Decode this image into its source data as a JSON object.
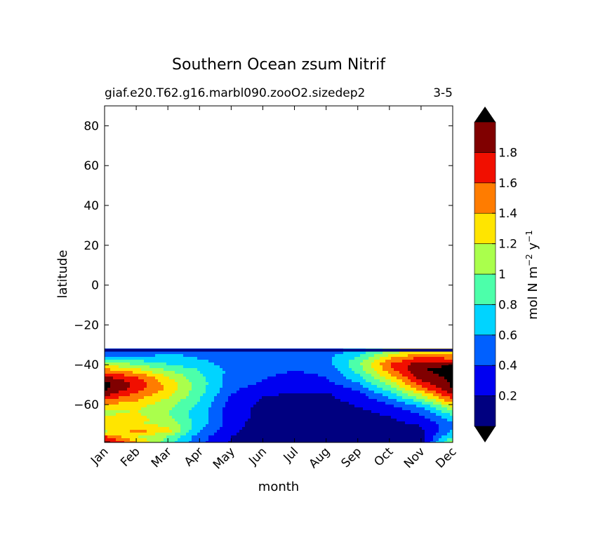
{
  "chart_data": {
    "type": "heatmap",
    "title": "Southern Ocean zsum Nitrif",
    "subtitle_left": "giaf.e20.T62.g16.marbl090.zooO2.sizedep2",
    "subtitle_right": "3-5",
    "xlabel": "month",
    "ylabel": "latitude",
    "x_categories": [
      "Jan",
      "Feb",
      "Mar",
      "Apr",
      "May",
      "Jun",
      "Jul",
      "Aug",
      "Sep",
      "Oct",
      "Nov",
      "Dec"
    ],
    "y_ticks": [
      80,
      60,
      40,
      20,
      0,
      -20,
      -40,
      -60
    ],
    "y_tick_labels": [
      "80",
      "60",
      "40",
      "20",
      "0",
      "−20",
      "−40",
      "−60"
    ],
    "ylim": [
      -79,
      90
    ],
    "colorbar": {
      "label": "mol N m⁻² y⁻¹",
      "label_main": "mol N m",
      "label_exp1": "−2",
      "label_mid": " y",
      "label_exp2": "−1",
      "levels": [
        0,
        0.2,
        0.4,
        0.6,
        0.8,
        1.0,
        1.2,
        1.4,
        1.6,
        1.8,
        2.0
      ],
      "tick_values": [
        0.2,
        0.4,
        0.6,
        0.8,
        1.0,
        1.2,
        1.4,
        1.6,
        1.8
      ],
      "tick_labels": [
        "0.2",
        "0.4",
        "0.6",
        "0.8",
        "1",
        "1.2",
        "1.4",
        "1.6",
        "1.8"
      ],
      "colors": [
        "#000080",
        "#0000f1",
        "#0060ff",
        "#00d4ff",
        "#4cffaa",
        "#aaff4c",
        "#ffe500",
        "#ff7c00",
        "#f10f00",
        "#800000"
      ],
      "over_color": "#000000",
      "under_color": "#000000"
    },
    "field": {
      "lat_top": -32,
      "lat_bottom": -79,
      "top_band_color": "#000080",
      "rows": [
        [
          -34,
          [
            0.4,
            0.4,
            0.6,
            0.5,
            0.45,
            0.4,
            0.4,
            0.5,
            0.7,
            1.1,
            1.4,
            1.3
          ]
        ],
        [
          -37,
          [
            0.8,
            0.7,
            0.7,
            0.6,
            0.5,
            0.45,
            0.45,
            0.55,
            0.85,
            1.4,
            1.7,
            1.6
          ]
        ],
        [
          -40,
          [
            1.2,
            1.0,
            0.8,
            0.7,
            0.5,
            0.45,
            0.45,
            0.5,
            0.95,
            1.6,
            1.95,
            2.0
          ]
        ],
        [
          -43,
          [
            1.5,
            1.3,
            1.0,
            0.8,
            0.55,
            0.45,
            0.4,
            0.45,
            0.85,
            1.5,
            2.0,
            2.05
          ]
        ],
        [
          -46,
          [
            1.8,
            1.6,
            1.2,
            0.85,
            0.5,
            0.42,
            0.35,
            0.4,
            0.75,
            1.3,
            1.9,
            2.05
          ]
        ],
        [
          -49,
          [
            2.05,
            1.75,
            1.3,
            0.9,
            0.5,
            0.38,
            0.32,
            0.35,
            0.6,
            1.1,
            1.75,
            2.05
          ]
        ],
        [
          -52,
          [
            2.05,
            1.7,
            1.35,
            0.9,
            0.45,
            0.3,
            0.25,
            0.25,
            0.45,
            0.9,
            1.5,
            2.0
          ]
        ],
        [
          -55,
          [
            1.85,
            1.55,
            1.25,
            0.85,
            0.4,
            0.22,
            0.18,
            0.18,
            0.32,
            0.7,
            1.2,
            1.8
          ]
        ],
        [
          -58,
          [
            1.55,
            1.4,
            1.15,
            0.8,
            0.35,
            0.18,
            0.14,
            0.15,
            0.25,
            0.5,
            0.9,
            1.55
          ]
        ],
        [
          -61,
          [
            1.3,
            1.25,
            1.05,
            0.75,
            0.3,
            0.15,
            0.12,
            0.12,
            0.2,
            0.35,
            0.6,
            1.2
          ]
        ],
        [
          -64,
          [
            1.15,
            1.2,
            1.0,
            0.7,
            0.3,
            0.14,
            0.1,
            0.1,
            0.15,
            0.25,
            0.45,
            0.9
          ]
        ],
        [
          -67,
          [
            1.25,
            1.3,
            1.05,
            0.7,
            0.3,
            0.12,
            0.09,
            0.09,
            0.12,
            0.18,
            0.32,
            0.7
          ]
        ],
        [
          -70,
          [
            1.4,
            1.2,
            1.15,
            0.7,
            0.28,
            0.1,
            0.08,
            0.08,
            0.1,
            0.14,
            0.22,
            0.55
          ]
        ],
        [
          -73,
          [
            1.1,
            1.5,
            1.3,
            0.6,
            0.25,
            0.09,
            0.07,
            0.07,
            0.08,
            0.1,
            0.15,
            0.6
          ]
        ],
        [
          -76,
          [
            1.6,
            1.2,
            1.0,
            0.5,
            0.2,
            0.08,
            0.06,
            0.06,
            0.07,
            0.08,
            0.12,
            0.8
          ]
        ],
        [
          -79,
          [
            1.9,
            1.4,
            0.9,
            0.45,
            0.18,
            0.07,
            0.05,
            0.05,
            0.06,
            0.07,
            0.1,
            1.1
          ]
        ]
      ]
    }
  }
}
